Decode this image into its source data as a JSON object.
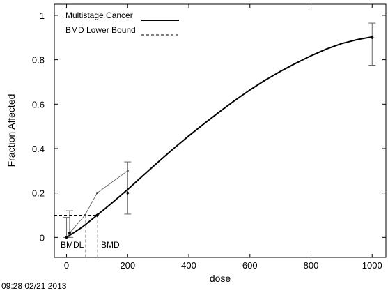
{
  "chart_data": {
    "type": "line",
    "title": "",
    "xlabel": "dose",
    "ylabel": "Fraction Affected",
    "xlim": [
      -40,
      1045
    ],
    "ylim": [
      -0.09,
      1.05
    ],
    "x_ticks": [
      0,
      200,
      400,
      600,
      800,
      1000
    ],
    "x_tick_labels": [
      "0",
      "200",
      "400",
      "600",
      "800",
      "1000"
    ],
    "y_ticks": [
      0,
      0.2,
      0.4,
      0.6,
      0.8,
      1
    ],
    "y_tick_labels": [
      "0",
      "0.2",
      "0.4",
      "0.6",
      "0.8",
      "1"
    ],
    "grid": false,
    "legend_position": "top-left",
    "legend": [
      {
        "label": "Multistage Cancer",
        "style": "solid"
      },
      {
        "label": "BMD Lower Bound",
        "style": "dashed"
      }
    ],
    "model_curve": {
      "name": "Multistage Cancer",
      "x": [
        0,
        50,
        100,
        150,
        200,
        250,
        300,
        350,
        400,
        450,
        500,
        550,
        600,
        650,
        700,
        750,
        800,
        850,
        900,
        950,
        1000
      ],
      "y": [
        0.0,
        0.045,
        0.1,
        0.157,
        0.216,
        0.278,
        0.34,
        0.4,
        0.457,
        0.512,
        0.565,
        0.616,
        0.664,
        0.708,
        0.748,
        0.784,
        0.818,
        0.848,
        0.873,
        0.89,
        0.903
      ]
    },
    "observed": {
      "x": [
        0,
        10,
        100,
        200,
        1000
      ],
      "y": [
        0.0,
        0.02,
        0.1,
        0.2,
        0.9
      ]
    },
    "error_bars": [
      {
        "x": 0,
        "low": 0.0,
        "high": 0.09
      },
      {
        "x": 10,
        "low": 0.0,
        "high": 0.12
      },
      {
        "x": 200,
        "low": 0.105,
        "high": 0.34
      },
      {
        "x": 1000,
        "low": 0.775,
        "high": 0.965
      }
    ],
    "thin_series": {
      "x": [
        0,
        10,
        60,
        100,
        200
      ],
      "y": [
        0.0,
        0.02,
        0.1,
        0.2,
        0.3
      ]
    },
    "bmr_level": 0.1,
    "bmd": 102,
    "bmdl": 63,
    "annotations": {
      "bmdl_label": "BMDL",
      "bmd_label": "BMD"
    }
  },
  "timestamp": "09:28 02/21 2013"
}
